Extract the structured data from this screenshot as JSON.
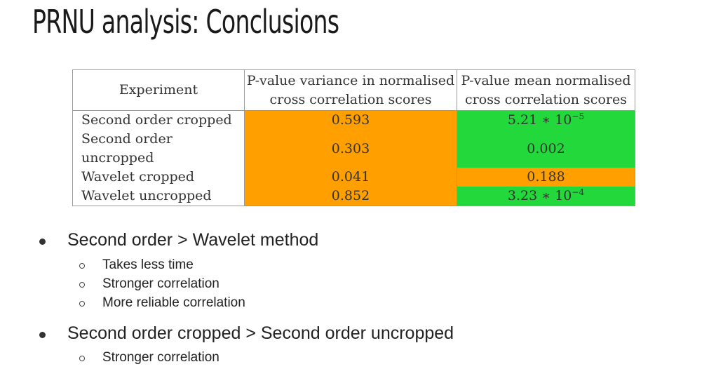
{
  "slide": {
    "title": "PRNU analysis: Conclusions"
  },
  "table": {
    "headers": [
      "Experiment",
      "P-value variance in normalised cross correlation scores",
      "P-value mean normalised cross correlation scores"
    ],
    "rows": [
      {
        "experiment": "Second order cropped",
        "variance": "0.593",
        "mean_base": "5.21 ∗ 10",
        "mean_exp": "−5",
        "variance_color": "#ff9f00",
        "mean_color": "#22d83a"
      },
      {
        "experiment": "Second order uncropped",
        "variance": "0.303",
        "mean_base": "0.002",
        "mean_exp": "",
        "variance_color": "#ff9f00",
        "mean_color": "#22d83a"
      },
      {
        "experiment": "Wavelet cropped",
        "variance": "0.041",
        "mean_base": "0.188",
        "mean_exp": "",
        "variance_color": "#ff9f00",
        "mean_color": "#ff9f00"
      },
      {
        "experiment": "Wavelet uncropped",
        "variance": "0.852",
        "mean_base": "3.23 ∗ 10",
        "mean_exp": "−4",
        "variance_color": "#ff9f00",
        "mean_color": "#22d83a"
      }
    ]
  },
  "bullets": [
    {
      "text": "Second order > Wavelet method",
      "sub": [
        "Takes less time",
        "Stronger correlation",
        "More reliable correlation"
      ]
    },
    {
      "text": "Second order cropped > Second order uncropped",
      "sub": [
        "Stronger correlation"
      ]
    }
  ]
}
